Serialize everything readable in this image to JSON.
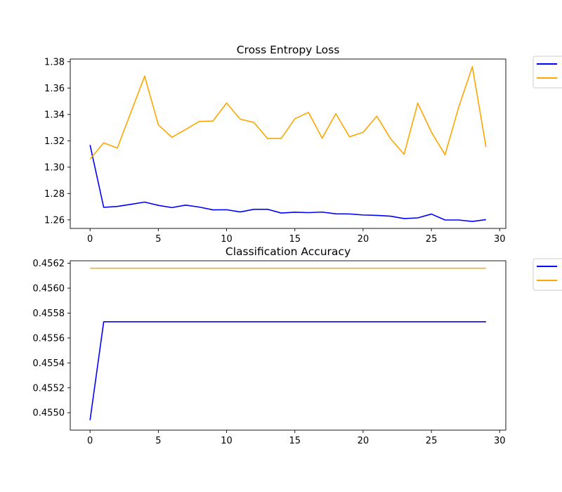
{
  "chart_data": [
    {
      "type": "line",
      "title": "Cross Entropy Loss",
      "xlabel": "",
      "ylabel": "",
      "xlim": [
        -1.45,
        30.45
      ],
      "ylim": [
        1.2535,
        1.382
      ],
      "x_ticks": [
        0,
        5,
        10,
        15,
        20,
        25,
        30
      ],
      "y_ticks": [
        1.26,
        1.28,
        1.3,
        1.32,
        1.34,
        1.36,
        1.38
      ],
      "y_decimals": 2,
      "grid": false,
      "legend": "outside-top-right",
      "x": [
        0,
        1,
        2,
        3,
        4,
        5,
        6,
        7,
        8,
        9,
        10,
        11,
        12,
        13,
        14,
        15,
        16,
        17,
        18,
        19,
        20,
        21,
        22,
        23,
        24,
        25,
        26,
        27,
        28,
        29
      ],
      "series": [
        {
          "color": "#0000ff",
          "values": [
            1.3168,
            1.2695,
            1.2702,
            1.2718,
            1.2735,
            1.271,
            1.2693,
            1.2712,
            1.2697,
            1.2676,
            1.2677,
            1.266,
            1.268,
            1.268,
            1.2652,
            1.2658,
            1.2655,
            1.2659,
            1.2646,
            1.2645,
            1.2637,
            1.2634,
            1.2628,
            1.261,
            1.2615,
            1.2644,
            1.2599,
            1.2599,
            1.2588,
            1.2602
          ]
        },
        {
          "color": "#ffa500",
          "values": [
            1.3061,
            1.3184,
            1.3145,
            1.3418,
            1.369,
            1.3321,
            1.3226,
            1.3286,
            1.3347,
            1.335,
            1.3486,
            1.3364,
            1.3339,
            1.3217,
            1.3217,
            1.3367,
            1.3415,
            1.322,
            1.3406,
            1.323,
            1.3264,
            1.3387,
            1.3217,
            1.3097,
            1.3485,
            1.3266,
            1.3094,
            1.3455,
            1.3762,
            1.3153
          ]
        }
      ]
    },
    {
      "type": "line",
      "title": "Classification Accuracy",
      "xlabel": "",
      "ylabel": "",
      "xlim": [
        -1.45,
        30.45
      ],
      "ylim": [
        0.45486,
        0.45622
      ],
      "x_ticks": [
        0,
        5,
        10,
        15,
        20,
        25,
        30
      ],
      "y_ticks": [
        0.455,
        0.4552,
        0.4554,
        0.4556,
        0.4558,
        0.456,
        0.4562
      ],
      "y_decimals": 4,
      "grid": false,
      "legend": "outside-top-right",
      "x": [
        0,
        1,
        2,
        3,
        4,
        5,
        6,
        7,
        8,
        9,
        10,
        11,
        12,
        13,
        14,
        15,
        16,
        17,
        18,
        19,
        20,
        21,
        22,
        23,
        24,
        25,
        26,
        27,
        28,
        29
      ],
      "series": [
        {
          "color": "#0000ff",
          "values": [
            0.45494,
            0.45573,
            0.45573,
            0.45573,
            0.45573,
            0.45573,
            0.45573,
            0.45573,
            0.45573,
            0.45573,
            0.45573,
            0.45573,
            0.45573,
            0.45573,
            0.45573,
            0.45573,
            0.45573,
            0.45573,
            0.45573,
            0.45573,
            0.45573,
            0.45573,
            0.45573,
            0.45573,
            0.45573,
            0.45573,
            0.45573,
            0.45573,
            0.45573,
            0.45573
          ]
        },
        {
          "color": "#ffa500",
          "values": [
            0.45616,
            0.45616,
            0.45616,
            0.45616,
            0.45616,
            0.45616,
            0.45616,
            0.45616,
            0.45616,
            0.45616,
            0.45616,
            0.45616,
            0.45616,
            0.45616,
            0.45616,
            0.45616,
            0.45616,
            0.45616,
            0.45616,
            0.45616,
            0.45616,
            0.45616,
            0.45616,
            0.45616,
            0.45616,
            0.45616,
            0.45616,
            0.45616,
            0.45616,
            0.45616
          ]
        }
      ]
    }
  ]
}
